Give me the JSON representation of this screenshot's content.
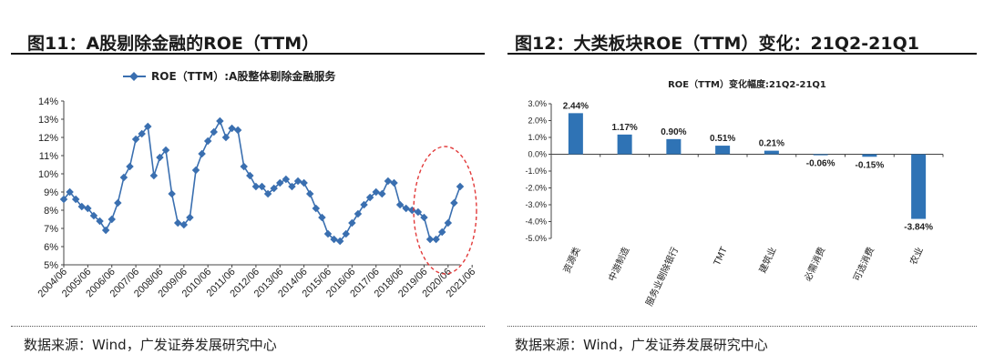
{
  "left": {
    "title": "图11：A股剔除金融的ROE（TTM）",
    "source": "数据来源：Wind，广发证券发展研究中心",
    "chart_data": {
      "type": "line",
      "title": "",
      "legend": "ROE（TTM）:A股整体剔除金融服务",
      "xlabel": "",
      "ylabel": "",
      "ylim": [
        5,
        14
      ],
      "yticks": [
        "5%",
        "6%",
        "7%",
        "8%",
        "9%",
        "10%",
        "11%",
        "12%",
        "13%",
        "14%"
      ],
      "xticks": [
        "2004/06",
        "2005/06",
        "2006/06",
        "2007/06",
        "2008/06",
        "2009/06",
        "2010/06",
        "2011/06",
        "2012/06",
        "2013/06",
        "2014/06",
        "2015/06",
        "2016/06",
        "2017/06",
        "2018/06",
        "2019/06",
        "2020/06",
        "2021/06"
      ],
      "series": [
        {
          "name": "ROE（TTM）:A股整体剔除金融服务",
          "color": "#3a6fb0",
          "values": [
            8.6,
            9.0,
            8.6,
            8.2,
            8.1,
            7.7,
            7.4,
            6.9,
            7.5,
            8.4,
            9.8,
            10.4,
            11.9,
            12.2,
            12.6,
            9.9,
            10.9,
            11.3,
            8.9,
            7.3,
            7.2,
            7.6,
            10.2,
            11.1,
            11.8,
            12.3,
            12.9,
            12.0,
            12.5,
            12.4,
            10.4,
            9.9,
            9.3,
            9.3,
            8.9,
            9.2,
            9.5,
            9.7,
            9.3,
            9.6,
            9.5,
            8.9,
            8.1,
            7.6,
            6.7,
            6.4,
            6.3,
            6.7,
            7.3,
            7.8,
            8.3,
            8.7,
            9.0,
            8.9,
            9.6,
            9.5,
            8.3,
            8.1,
            8.0,
            7.9,
            7.6,
            6.4,
            6.4,
            6.8,
            7.3,
            8.4,
            9.3
          ]
        }
      ],
      "annotation": "dashed-ellipse-latest-rebound"
    }
  },
  "right": {
    "title": "图12：大类板块ROE（TTM）变化：21Q2-21Q1",
    "source": "数据来源：Wind，广发证券发展研究中心",
    "chart_data": {
      "type": "bar",
      "title": "ROE（TTM）变化幅度:21Q2-21Q1",
      "categories": [
        "资源类",
        "中游制造",
        "服务业剔除银行",
        "TMT",
        "建筑业",
        "必需消费",
        "可选消费",
        "农业"
      ],
      "values": [
        2.44,
        1.17,
        0.9,
        0.51,
        0.21,
        -0.06,
        -0.15,
        -3.84
      ],
      "value_labels": [
        "2.44%",
        "1.17%",
        "0.90%",
        "0.51%",
        "0.21%",
        "-0.06%",
        "-0.15%",
        "-3.84%"
      ],
      "ylim": [
        -5,
        3
      ],
      "yticks": [
        "-5.0%",
        "-4.0%",
        "-3.0%",
        "-2.0%",
        "-1.0%",
        "0.0%",
        "1.0%",
        "2.0%",
        "3.0%"
      ],
      "color": "#2f73b5"
    }
  }
}
